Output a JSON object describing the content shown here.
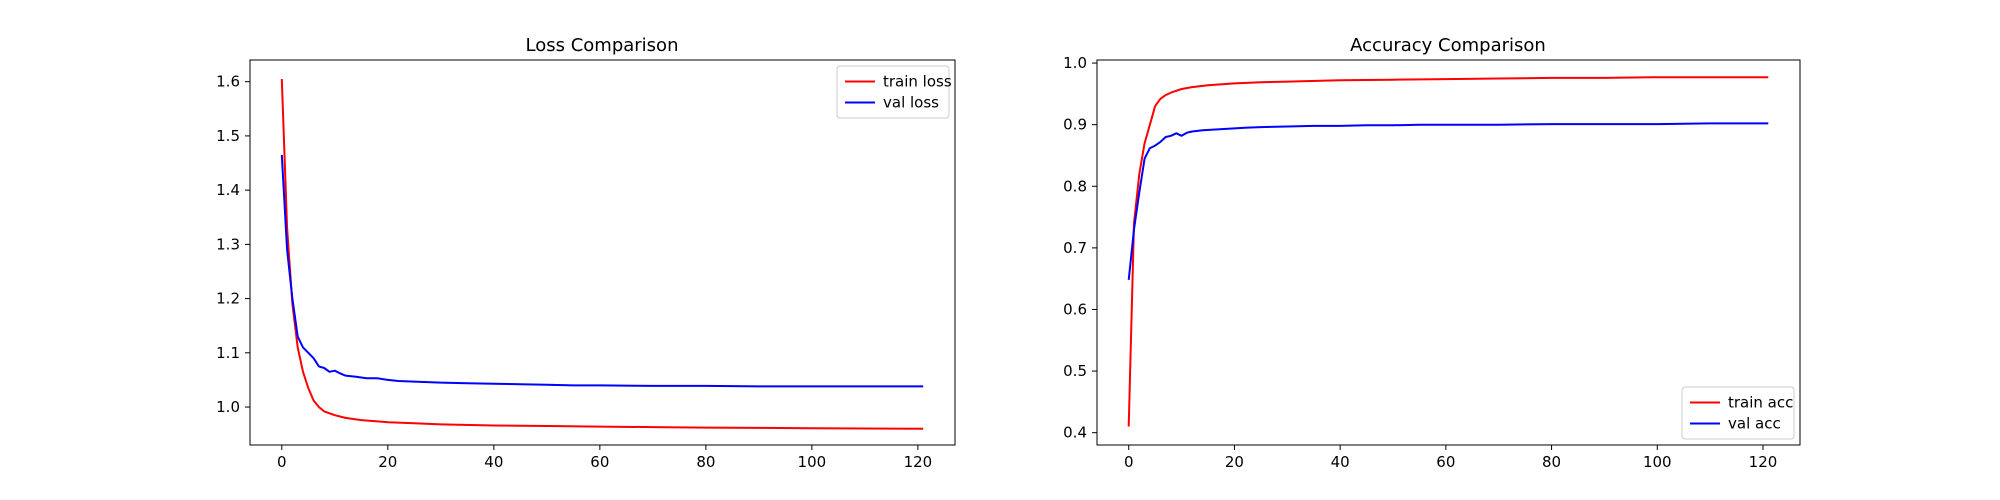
{
  "chart_data": [
    {
      "type": "line",
      "title": "Loss Comparison",
      "xlabel": "",
      "ylabel": "",
      "xlim": [
        -6,
        127
      ],
      "ylim": [
        0.93,
        1.64
      ],
      "xticks": [
        0,
        20,
        40,
        60,
        80,
        100,
        120
      ],
      "yticks": [
        1.0,
        1.1,
        1.2,
        1.3,
        1.4,
        1.5,
        1.6
      ],
      "ytick_labels": [
        "1.0",
        "1.1",
        "1.2",
        "1.3",
        "1.4",
        "1.5",
        "1.6"
      ],
      "grid": false,
      "legend": "upper right",
      "series": [
        {
          "name": "train loss",
          "color": "#ff0000",
          "x": [
            0,
            1,
            2,
            3,
            4,
            5,
            6,
            7,
            8,
            10,
            12,
            15,
            20,
            25,
            30,
            40,
            50,
            60,
            70,
            80,
            90,
            100,
            110,
            121
          ],
          "y": [
            1.605,
            1.33,
            1.19,
            1.11,
            1.065,
            1.035,
            1.012,
            1.0,
            0.992,
            0.985,
            0.98,
            0.976,
            0.972,
            0.97,
            0.968,
            0.966,
            0.965,
            0.964,
            0.963,
            0.962,
            0.9615,
            0.961,
            0.9605,
            0.96
          ]
        },
        {
          "name": "val loss",
          "color": "#0000ff",
          "x": [
            0,
            1,
            2,
            3,
            4,
            5,
            6,
            7,
            8,
            9,
            10,
            11,
            12,
            14,
            16,
            18,
            20,
            22,
            25,
            30,
            35,
            40,
            45,
            50,
            55,
            60,
            70,
            80,
            90,
            100,
            110,
            121
          ],
          "y": [
            1.465,
            1.29,
            1.2,
            1.13,
            1.11,
            1.1,
            1.09,
            1.075,
            1.072,
            1.065,
            1.067,
            1.062,
            1.058,
            1.056,
            1.053,
            1.053,
            1.05,
            1.048,
            1.047,
            1.045,
            1.044,
            1.043,
            1.042,
            1.041,
            1.04,
            1.04,
            1.039,
            1.039,
            1.038,
            1.038,
            1.038,
            1.038
          ]
        }
      ]
    },
    {
      "type": "line",
      "title": "Accuracy Comparison",
      "xlabel": "",
      "ylabel": "",
      "xlim": [
        -6,
        127
      ],
      "ylim": [
        0.38,
        1.005
      ],
      "xticks": [
        0,
        20,
        40,
        60,
        80,
        100,
        120
      ],
      "yticks": [
        0.4,
        0.5,
        0.6,
        0.7,
        0.8,
        0.9,
        1.0
      ],
      "ytick_labels": [
        "0.4",
        "0.5",
        "0.6",
        "0.7",
        "0.8",
        "0.9",
        "1.0"
      ],
      "grid": false,
      "legend": "lower right",
      "series": [
        {
          "name": "train acc",
          "color": "#ff0000",
          "x": [
            0,
            1,
            2,
            3,
            4,
            5,
            6,
            7,
            8,
            10,
            12,
            15,
            20,
            25,
            30,
            40,
            50,
            60,
            70,
            80,
            90,
            100,
            110,
            121
          ],
          "y": [
            0.41,
            0.74,
            0.82,
            0.87,
            0.9,
            0.93,
            0.942,
            0.948,
            0.952,
            0.958,
            0.961,
            0.964,
            0.967,
            0.969,
            0.97,
            0.972,
            0.973,
            0.974,
            0.975,
            0.976,
            0.976,
            0.977,
            0.977,
            0.977
          ]
        },
        {
          "name": "val acc",
          "color": "#0000ff",
          "x": [
            0,
            1,
            2,
            3,
            4,
            5,
            6,
            7,
            8,
            9,
            10,
            11,
            12,
            14,
            16,
            18,
            20,
            22,
            25,
            30,
            35,
            40,
            45,
            50,
            55,
            60,
            70,
            80,
            90,
            100,
            110,
            121
          ],
          "y": [
            0.648,
            0.73,
            0.79,
            0.845,
            0.862,
            0.866,
            0.872,
            0.88,
            0.882,
            0.886,
            0.882,
            0.887,
            0.889,
            0.891,
            0.892,
            0.893,
            0.894,
            0.895,
            0.896,
            0.897,
            0.898,
            0.898,
            0.899,
            0.899,
            0.9,
            0.9,
            0.9,
            0.901,
            0.901,
            0.901,
            0.902,
            0.902
          ]
        }
      ]
    }
  ]
}
